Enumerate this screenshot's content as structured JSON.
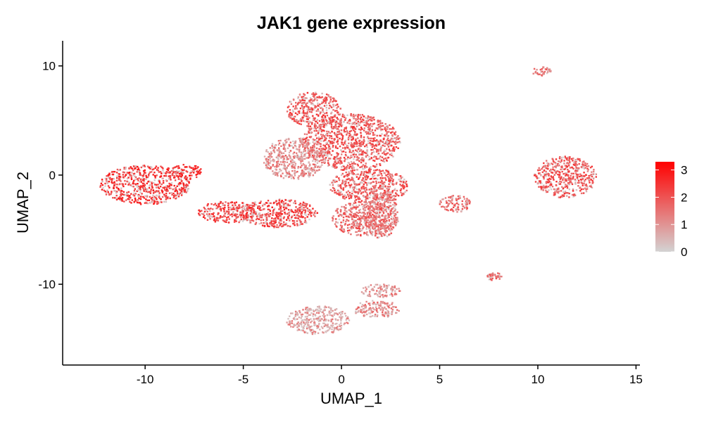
{
  "chart_data": {
    "type": "scatter",
    "title": "JAK1 gene expression",
    "xlabel": "UMAP_1",
    "ylabel": "UMAP_2",
    "xlim": [
      -14.2,
      15.2
    ],
    "ylim": [
      -17.4,
      12.3
    ],
    "x_ticks": [
      -10,
      -5,
      0,
      5,
      10,
      15
    ],
    "y_ticks": [
      -10,
      0,
      10
    ],
    "x_tick_labels": [
      "-10",
      "-5",
      "0",
      "5",
      "10",
      "15"
    ],
    "y_tick_labels": [
      "-10",
      "0",
      "10"
    ],
    "grid": false,
    "legend": {
      "placement": "right",
      "title": "",
      "min": 0,
      "max": 3.3,
      "ticks": [
        0,
        1,
        2,
        3
      ],
      "tick_labels": [
        "0",
        "1",
        "2",
        "3"
      ],
      "color_low": "#D3D3D3",
      "color_high": "#FF0000"
    },
    "clusters": [
      {
        "cx": -10.0,
        "cy": -0.9,
        "rx": 2.3,
        "ry": 1.8,
        "level": 2.4
      },
      {
        "cx": -7.9,
        "cy": 0.3,
        "rx": 0.8,
        "ry": 0.7,
        "level": 2.5
      },
      {
        "cx": -5.8,
        "cy": -3.4,
        "rx": 1.5,
        "ry": 1.0,
        "level": 2.3
      },
      {
        "cx": -3.2,
        "cy": -3.5,
        "rx": 2.0,
        "ry": 1.3,
        "level": 2.2
      },
      {
        "cx": -1.4,
        "cy": 6.0,
        "rx": 1.4,
        "ry": 1.6,
        "level": 2.0
      },
      {
        "cx": 0.5,
        "cy": 3.0,
        "rx": 2.5,
        "ry": 2.6,
        "level": 1.9
      },
      {
        "cx": -2.4,
        "cy": 1.5,
        "rx": 1.6,
        "ry": 1.9,
        "level": 1.2
      },
      {
        "cx": 1.4,
        "cy": -1.0,
        "rx": 2.0,
        "ry": 1.6,
        "level": 2.0
      },
      {
        "cx": 1.2,
        "cy": -4.0,
        "rx": 1.7,
        "ry": 1.6,
        "level": 1.7
      },
      {
        "cx": 2.0,
        "cy": -3.4,
        "rx": 0.9,
        "ry": 2.4,
        "level": 1.5
      },
      {
        "cx": 5.8,
        "cy": -2.6,
        "rx": 0.8,
        "ry": 0.8,
        "level": 1.6
      },
      {
        "cx": 11.4,
        "cy": -0.2,
        "rx": 1.6,
        "ry": 1.9,
        "level": 1.9
      },
      {
        "cx": 10.2,
        "cy": 9.5,
        "rx": 0.5,
        "ry": 0.4,
        "level": 1.6
      },
      {
        "cx": 7.8,
        "cy": -9.3,
        "rx": 0.4,
        "ry": 0.4,
        "level": 1.4
      },
      {
        "cx": -1.2,
        "cy": -13.3,
        "rx": 1.6,
        "ry": 1.3,
        "level": 0.9
      },
      {
        "cx": 1.8,
        "cy": -12.3,
        "rx": 1.2,
        "ry": 0.8,
        "level": 1.3
      },
      {
        "cx": 2.0,
        "cy": -10.6,
        "rx": 1.0,
        "ry": 0.6,
        "level": 1.1
      }
    ]
  }
}
